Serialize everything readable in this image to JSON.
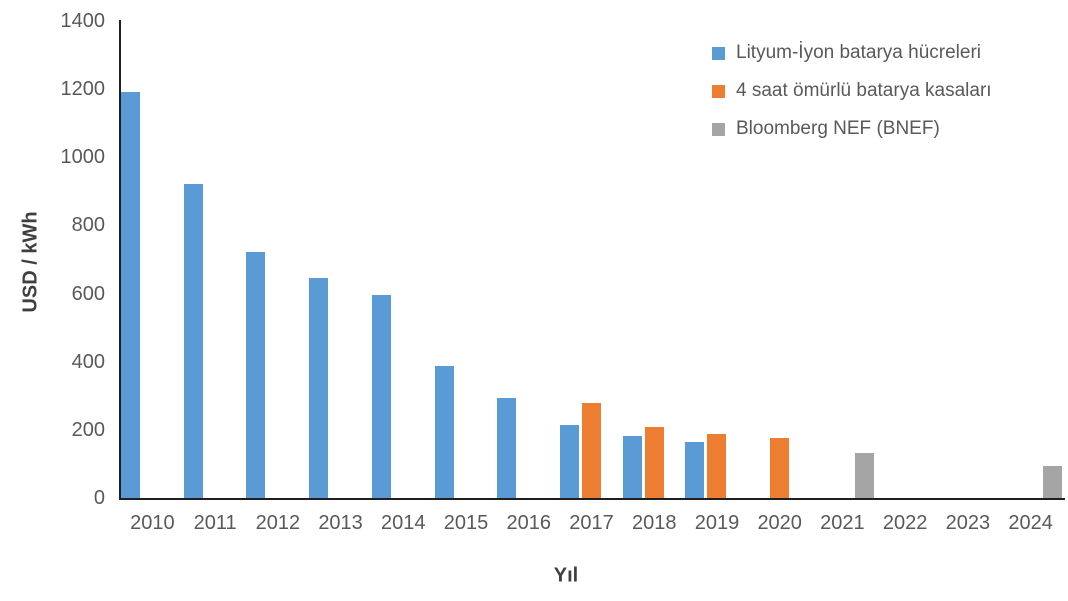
{
  "chart_data": {
    "type": "bar",
    "title": "",
    "xlabel": "Yıl",
    "ylabel": "USD / kWh",
    "ylim": [
      0,
      1400
    ],
    "yticks": [
      0,
      200,
      400,
      600,
      800,
      1000,
      1200,
      1400
    ],
    "grid": false,
    "legend_position": "top-right",
    "categories": [
      "2010",
      "2011",
      "2012",
      "2013",
      "2014",
      "2015",
      "2016",
      "2017",
      "2018",
      "2019",
      "2020",
      "2021",
      "2022",
      "2023",
      "2024"
    ],
    "series": [
      {
        "id": "lityum-iyon-hucre",
        "name": "Lityum-İyon batarya hücreleri",
        "color": "#5B9BD5",
        "values": [
          1195,
          925,
          725,
          650,
          600,
          390,
          295,
          218,
          184,
          166,
          null,
          null,
          null,
          null,
          null
        ]
      },
      {
        "id": "4-saat-kasa",
        "name": "4 saat ömürlü batarya kasaları",
        "color": "#ED7D31",
        "values": [
          null,
          null,
          null,
          null,
          null,
          null,
          null,
          283,
          212,
          190,
          178,
          null,
          null,
          null,
          null
        ]
      },
      {
        "id": "bloomberg-nef",
        "name": "Bloomberg NEF (BNEF)",
        "color": "#A5A5A5",
        "values": [
          null,
          null,
          null,
          null,
          null,
          null,
          null,
          null,
          null,
          null,
          null,
          135,
          null,
          null,
          98
        ]
      }
    ]
  },
  "colors": {
    "axis_line": "#1f1f1f",
    "tick_label": "#595959",
    "axis_title": "#3f3f3f",
    "background": "#ffffff"
  }
}
